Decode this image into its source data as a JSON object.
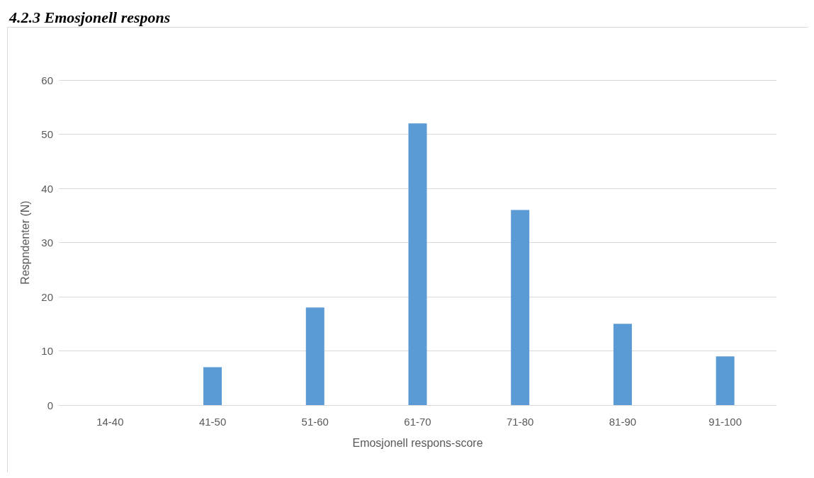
{
  "chart_data": {
    "type": "bar",
    "title": "4.2.3 Emosjonell respons",
    "xlabel": "Emosjonell respons-score",
    "ylabel": "Respndenter (N)",
    "categories": [
      "14-40",
      "41-50",
      "51-60",
      "61-70",
      "71-80",
      "81-90",
      "91-100"
    ],
    "values": [
      0,
      7,
      18,
      52,
      36,
      15,
      9
    ],
    "color": "#5b9bd5",
    "ylim": [
      0,
      60
    ],
    "yticks": [
      0,
      10,
      20,
      30,
      40,
      50,
      60
    ],
    "grid": "y"
  }
}
